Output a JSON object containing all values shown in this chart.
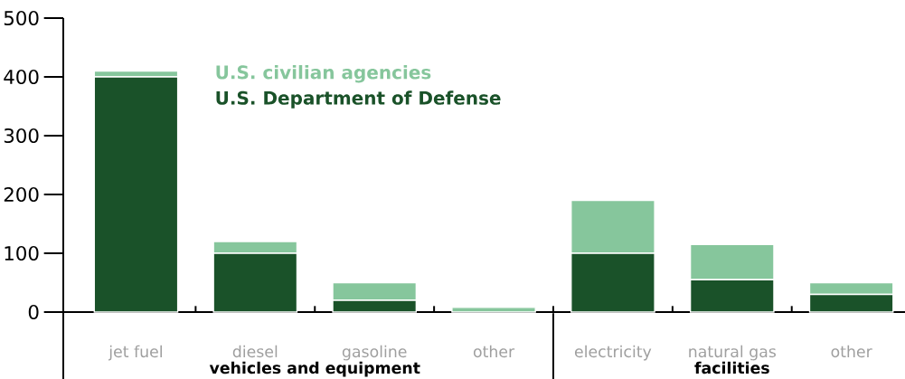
{
  "chart_data": {
    "type": "bar",
    "stacked": true,
    "categories": [
      "jet fuel",
      "diesel",
      "gasoline",
      "other",
      "electricity",
      "natural gas",
      "other"
    ],
    "series": [
      {
        "name": "U.S. Department of Defense",
        "color": "#1a5229",
        "values": [
          400,
          100,
          20,
          0,
          100,
          55,
          30
        ]
      },
      {
        "name": "U.S. civilian agencies",
        "color": "#86c69c",
        "values": [
          10,
          20,
          30,
          8,
          90,
          60,
          20
        ]
      }
    ],
    "ylim": [
      0,
      500
    ],
    "yticks": [
      0,
      100,
      200,
      300,
      400,
      500
    ],
    "legend": "top left",
    "annotations": [
      "vehicles and equipment",
      "facilities"
    ]
  }
}
